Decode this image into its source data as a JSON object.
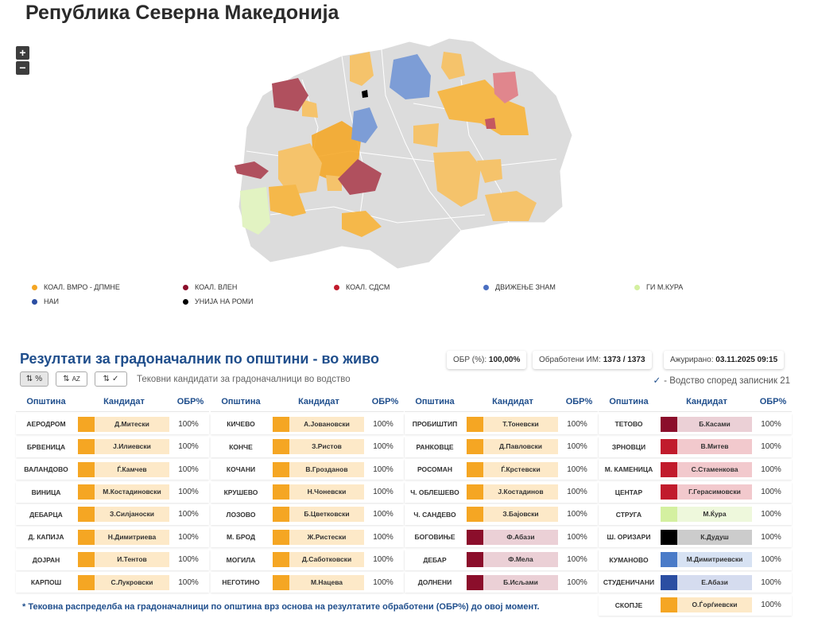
{
  "page_title": "Република Северна Македонија",
  "zoom": {
    "in": "+",
    "out": "−"
  },
  "colors": {
    "vmro": "#f5a623",
    "vmro_light": "#fde9c8",
    "vlen": "#8b0e2b",
    "vlen_light": "#ebd0d6",
    "sdsm": "#c11b2c",
    "sdsm_light": "#f2c9cd",
    "znam": "#4a7bc8",
    "znam_light": "#d7e2f3",
    "kura": "#d4f0a0",
    "kura_light": "#eef8dc",
    "nai": "#2b4ea2",
    "nai_light": "#d5dcef",
    "roma": "#000000",
    "roma_light": "#cccccc",
    "map_grey": "#dcdcdc"
  },
  "legend": [
    {
      "label": "КОАЛ. ВМРО - ДПМНЕ",
      "color": "#f5a623"
    },
    {
      "label": "КОАЛ. ВЛЕН",
      "color": "#8b0e2b"
    },
    {
      "label": "КОАЛ. СДСМ",
      "color": "#c11b2c"
    },
    {
      "label": "ДВИЖЕЊЕ ЗНАМ",
      "color": "#4a6fc1"
    },
    {
      "label": "ГИ М.КУРА",
      "color": "#d4f0a0"
    },
    {
      "label": "НАИ",
      "color": "#2b4ea2"
    },
    {
      "label": "УНИЈА НА РОМИ",
      "color": "#000000"
    }
  ],
  "results": {
    "title": "Резултати за градоначалник по општини - во живо",
    "obr_label": "ОБР (%):",
    "obr_value": "100,00%",
    "processed_label": "Обработени ИМ:",
    "processed_value": "1373 / 1373",
    "updated_label": "Ажурирано:",
    "updated_value": "03.11.2025 09:15",
    "sort_pct": "%",
    "sort_az": "AZ",
    "sort_check": "✓",
    "subtitle": "Тековни кандидати за градоначалници во водство",
    "lead_note": "- Водство според записник 21",
    "col_headers": {
      "municipality": "Општина",
      "candidate": "Кандидат",
      "obr": "ОБР%"
    },
    "footnote": "* Тековна распределба на градоначалници по општина врз основа на резултатите обработени (ОБР%) до овој момент."
  },
  "columns": [
    [
      {
        "mun": "АЕРОДРОМ",
        "cand": "Д.Митески",
        "obr": "100%",
        "party": "vmro"
      },
      {
        "mun": "БРВЕНИЦА",
        "cand": "Ј.Илиевски",
        "obr": "100%",
        "party": "vmro"
      },
      {
        "mun": "ВАЛАНДОВО",
        "cand": "Ѓ.Камчев",
        "obr": "100%",
        "party": "vmro"
      },
      {
        "mun": "ВИНИЦА",
        "cand": "М.Костадиновски",
        "obr": "100%",
        "party": "vmro"
      },
      {
        "mun": "ДЕБАРЦА",
        "cand": "З.Силјаноски",
        "obr": "100%",
        "party": "vmro"
      },
      {
        "mun": "Д. КАПИЈА",
        "cand": "Н.Димитриева",
        "obr": "100%",
        "party": "vmro"
      },
      {
        "mun": "ДОЈРАН",
        "cand": "И.Тентов",
        "obr": "100%",
        "party": "vmro"
      },
      {
        "mun": "КАРПОШ",
        "cand": "С.Лукровски",
        "obr": "100%",
        "party": "vmro"
      }
    ],
    [
      {
        "mun": "КИЧЕВО",
        "cand": "А.Јовановски",
        "obr": "100%",
        "party": "vmro"
      },
      {
        "mun": "КОНЧЕ",
        "cand": "З.Ристов",
        "obr": "100%",
        "party": "vmro"
      },
      {
        "mun": "КОЧАНИ",
        "cand": "В.Грозданов",
        "obr": "100%",
        "party": "vmro"
      },
      {
        "mun": "КРУШЕВО",
        "cand": "Н.Чоневски",
        "obr": "100%",
        "party": "vmro"
      },
      {
        "mun": "ЛОЗОВО",
        "cand": "Б.Цветковски",
        "obr": "100%",
        "party": "vmro"
      },
      {
        "mun": "М. БРОД",
        "cand": "Ж.Ристески",
        "obr": "100%",
        "party": "vmro"
      },
      {
        "mun": "МОГИЛА",
        "cand": "Д.Саботковски",
        "obr": "100%",
        "party": "vmro"
      },
      {
        "mun": "НЕГОТИНО",
        "cand": "М.Нацева",
        "obr": "100%",
        "party": "vmro"
      }
    ],
    [
      {
        "mun": "ПРОБИШТИП",
        "cand": "Т.Тоневски",
        "obr": "100%",
        "party": "vmro"
      },
      {
        "mun": "РАНКОВЦЕ",
        "cand": "Д.Павловски",
        "obr": "100%",
        "party": "vmro"
      },
      {
        "mun": "РОСОМАН",
        "cand": "Ѓ.Крстевски",
        "obr": "100%",
        "party": "vmro"
      },
      {
        "mun": "Ч. ОБЛЕШЕВО",
        "cand": "Ј.Костадинов",
        "obr": "100%",
        "party": "vmro"
      },
      {
        "mun": "Ч. САНДЕВО",
        "cand": "З.Бајовски",
        "obr": "100%",
        "party": "vmro"
      },
      {
        "mun": "БОГОВИЊЕ",
        "cand": "Ф.Абази",
        "obr": "100%",
        "party": "vlen"
      },
      {
        "mun": "ДЕБАР",
        "cand": "Ф.Мела",
        "obr": "100%",
        "party": "vlen"
      },
      {
        "mun": "ДОЛНЕНИ",
        "cand": "Б.Исљами",
        "obr": "100%",
        "party": "vlen"
      }
    ],
    [
      {
        "mun": "ТЕТОВО",
        "cand": "Б.Касами",
        "obr": "100%",
        "party": "vlen"
      },
      {
        "mun": "ЗРНОВЦИ",
        "cand": "В.Митев",
        "obr": "100%",
        "party": "sdsm"
      },
      {
        "mun": "М. КАМЕНИЦА",
        "cand": "С.Стаменкова",
        "obr": "100%",
        "party": "sdsm"
      },
      {
        "mun": "ЦЕНТАР",
        "cand": "Г.Герасимовски",
        "obr": "100%",
        "party": "sdsm"
      },
      {
        "mun": "СТРУГА",
        "cand": "М.Ќура",
        "obr": "100%",
        "party": "kura"
      },
      {
        "mun": "Ш. ОРИЗАРИ",
        "cand": "К.Дудуш",
        "obr": "100%",
        "party": "roma"
      },
      {
        "mun": "КУМАНОВО",
        "cand": "М.Димитриевски",
        "obr": "100%",
        "party": "znam"
      },
      {
        "mun": "СТУДЕНИЧАНИ",
        "cand": "Е.Абази",
        "obr": "100%",
        "party": "nai"
      },
      {
        "mun": "СКОПЈЕ",
        "cand": "О.Ѓорѓиевски",
        "obr": "100%",
        "party": "vmro"
      }
    ]
  ]
}
